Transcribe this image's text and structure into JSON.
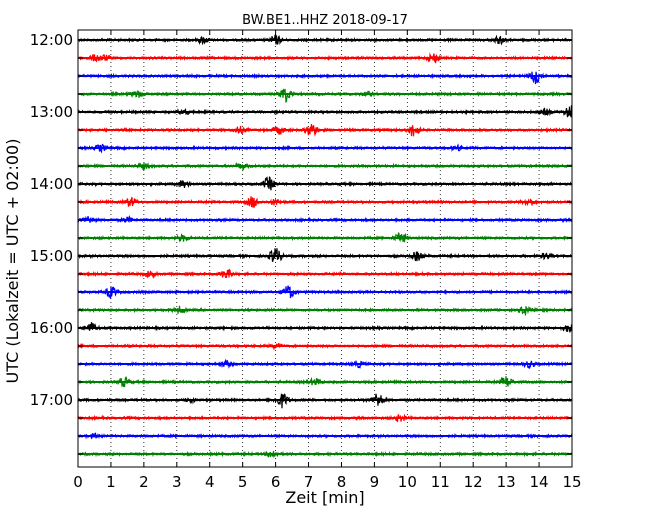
{
  "chart_data": {
    "type": "line",
    "title": "BW.BE1..HHZ 2018-09-17",
    "xlabel": "Zeit  [min]",
    "ylabel": "UTC (Lokalzeit = UTC + 02:00)",
    "xlim": [
      0,
      15
    ],
    "x_ticks": [
      "0",
      "1",
      "2",
      "3",
      "4",
      "5",
      "6",
      "7",
      "8",
      "9",
      "10",
      "11",
      "12",
      "13",
      "14",
      "15"
    ],
    "y_tick_labels": [
      "12:00",
      "13:00",
      "14:00",
      "15:00",
      "16:00",
      "17:00"
    ],
    "grid": "vertical dotted",
    "color_cycle": [
      "#000000",
      "#ff0000",
      "#0000ff",
      "#008000"
    ],
    "series": [
      {
        "start": "12:00",
        "events": [
          [
            3.8,
            0.35
          ],
          [
            6.0,
            0.5
          ],
          [
            12.8,
            0.4
          ]
        ]
      },
      {
        "start": "12:15",
        "events": [
          [
            0.5,
            0.3
          ],
          [
            0.8,
            0.3
          ],
          [
            10.8,
            0.55
          ]
        ]
      },
      {
        "start": "12:30",
        "events": [
          [
            13.9,
            0.8
          ]
        ]
      },
      {
        "start": "12:45",
        "events": [
          [
            1.8,
            0.35
          ],
          [
            6.3,
            0.8
          ],
          [
            8.8,
            0.2
          ]
        ]
      },
      {
        "start": "13:00",
        "events": [
          [
            3.2,
            0.3
          ],
          [
            14.2,
            0.3
          ],
          [
            14.95,
            0.7
          ]
        ]
      },
      {
        "start": "13:15",
        "events": [
          [
            4.9,
            0.35
          ],
          [
            6.1,
            0.4
          ],
          [
            7.1,
            0.75
          ],
          [
            10.2,
            0.7
          ]
        ]
      },
      {
        "start": "13:30",
        "events": [
          [
            0.7,
            0.35
          ],
          [
            11.5,
            0.25
          ]
        ]
      },
      {
        "start": "13:45",
        "events": [
          [
            2.0,
            0.3
          ],
          [
            5.0,
            0.3
          ]
        ]
      },
      {
        "start": "14:00",
        "events": [
          [
            3.2,
            0.35
          ],
          [
            5.8,
            0.7
          ]
        ]
      },
      {
        "start": "14:15",
        "events": [
          [
            1.6,
            0.5
          ],
          [
            5.3,
            0.6
          ],
          [
            6.0,
            0.3
          ],
          [
            13.7,
            0.4
          ]
        ]
      },
      {
        "start": "14:30",
        "events": [
          [
            0.3,
            0.4
          ],
          [
            1.5,
            0.25
          ]
        ]
      },
      {
        "start": "14:45",
        "events": [
          [
            3.2,
            0.3
          ],
          [
            9.8,
            0.6
          ]
        ]
      },
      {
        "start": "15:00",
        "events": [
          [
            6.0,
            0.9
          ],
          [
            10.3,
            0.5
          ],
          [
            14.2,
            0.3
          ]
        ]
      },
      {
        "start": "15:15",
        "events": [
          [
            2.2,
            0.3
          ],
          [
            4.5,
            0.5
          ]
        ]
      },
      {
        "start": "15:30",
        "events": [
          [
            1.0,
            0.6
          ],
          [
            6.4,
            0.7
          ]
        ]
      },
      {
        "start": "15:45",
        "events": [
          [
            3.1,
            0.35
          ],
          [
            13.6,
            0.5
          ]
        ]
      },
      {
        "start": "16:00",
        "events": [
          [
            0.4,
            0.55
          ],
          [
            14.9,
            0.4
          ]
        ]
      },
      {
        "start": "16:15",
        "events": [
          [
            6.0,
            0.2
          ]
        ]
      },
      {
        "start": "16:30",
        "events": [
          [
            4.5,
            0.3
          ],
          [
            8.5,
            0.3
          ],
          [
            13.7,
            0.35
          ]
        ]
      },
      {
        "start": "16:45",
        "events": [
          [
            1.4,
            0.5
          ],
          [
            7.2,
            0.35
          ],
          [
            13.0,
            0.6
          ]
        ]
      },
      {
        "start": "17:00",
        "events": [
          [
            6.2,
            0.8
          ],
          [
            9.1,
            0.8
          ],
          [
            3.4,
            0.2
          ]
        ]
      },
      {
        "start": "17:15",
        "events": [
          [
            9.8,
            0.35
          ]
        ]
      },
      {
        "start": "17:30",
        "events": [
          [
            0.5,
            0.2
          ]
        ]
      },
      {
        "start": "17:45",
        "events": [
          [
            5.9,
            0.4
          ]
        ]
      }
    ]
  }
}
